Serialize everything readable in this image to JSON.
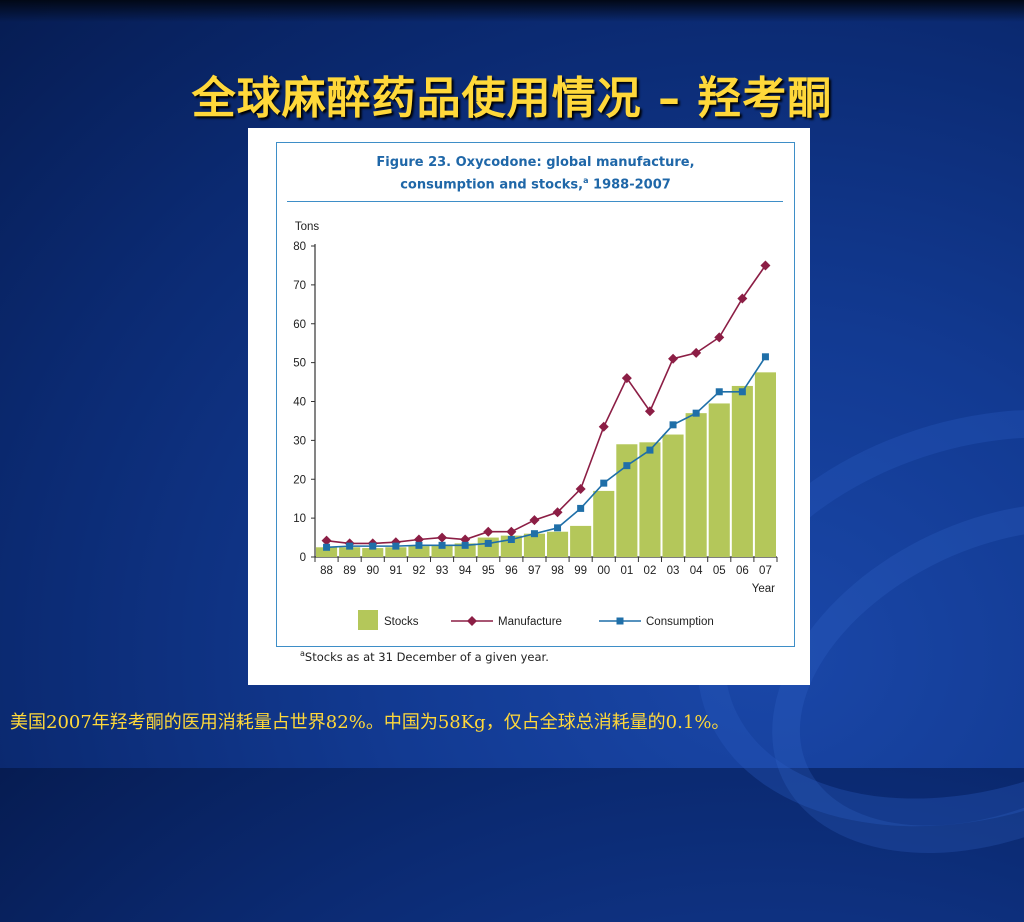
{
  "slide": {
    "title": "全球麻醉药品使用情况 – 羟考酮",
    "note": "美国2007年羟考酮的医用消耗量占世界82%。中国为58Kg，仅占全球总消耗量的0.1%。"
  },
  "figure": {
    "title_line1": "Figure 23.   Oxycodone: global manufacture,",
    "title_line2": "consumption and stocks,",
    "title_line2_sup": "a",
    "title_line2_end": " 1988-2007",
    "footnote_sup": "a",
    "footnote": "Stocks as at 31 December of a given year."
  },
  "chart_data": {
    "type": "bar",
    "title": "Figure 23. Oxycodone: global manufacture, consumption and stocks, 1988-2007",
    "ylabel": "Tons",
    "xlabel": "Year",
    "ylim": [
      0,
      80
    ],
    "yticks": [
      0,
      10,
      20,
      30,
      40,
      50,
      60,
      70,
      80
    ],
    "categories": [
      "88",
      "89",
      "90",
      "91",
      "92",
      "93",
      "94",
      "95",
      "96",
      "97",
      "98",
      "99",
      "00",
      "01",
      "02",
      "03",
      "04",
      "05",
      "06",
      "07"
    ],
    "legend_position": "bottom",
    "series": [
      {
        "name": "Stocks",
        "type": "bar",
        "color": "#b4c75a",
        "values": [
          2.5,
          2.5,
          2.3,
          2.5,
          2.8,
          3.0,
          3.5,
          5.0,
          5.5,
          6.0,
          6.5,
          8.0,
          17.0,
          29.0,
          29.5,
          31.5,
          37.0,
          39.5,
          44.0,
          47.5
        ]
      },
      {
        "name": "Manufacture",
        "type": "line",
        "marker": "diamond",
        "color": "#8c1e45",
        "values": [
          4.2,
          3.5,
          3.5,
          3.8,
          4.5,
          5.0,
          4.5,
          6.5,
          6.5,
          9.5,
          11.5,
          17.5,
          33.5,
          46.0,
          37.5,
          51.0,
          52.5,
          56.5,
          66.5,
          75.0
        ]
      },
      {
        "name": "Consumption",
        "type": "line",
        "marker": "square",
        "color": "#1f6fa8",
        "values": [
          2.5,
          2.8,
          2.8,
          2.8,
          3.0,
          3.0,
          3.0,
          3.5,
          4.5,
          6.0,
          7.5,
          12.5,
          19.0,
          23.5,
          27.5,
          34.0,
          37.0,
          42.5,
          42.5,
          51.5
        ]
      }
    ]
  }
}
